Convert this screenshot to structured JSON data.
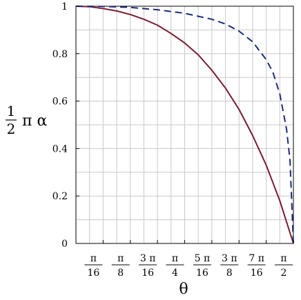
{
  "chart_data": {
    "type": "line",
    "title": "",
    "xlabel": "θ",
    "ylabel": {
      "fraction_numerator": "1",
      "fraction_denominator": "2",
      "text": "π α"
    },
    "xlim": [
      0,
      1.5708
    ],
    "ylim": [
      0,
      1
    ],
    "grid": true,
    "legend": "none",
    "y_ticks": [
      {
        "value": 0,
        "label": "0"
      },
      {
        "value": 0.2,
        "label": "0.2"
      },
      {
        "value": 0.4,
        "label": "0.4"
      },
      {
        "value": 0.6,
        "label": "0.6"
      },
      {
        "value": 0.8,
        "label": "0.8"
      },
      {
        "value": 1,
        "label": "1"
      }
    ],
    "x_ticks": [
      {
        "value": 0.19635,
        "num": "π",
        "den": "16"
      },
      {
        "value": 0.3927,
        "num": "π",
        "den": "8"
      },
      {
        "value": 0.58905,
        "num": "3 π",
        "den": "16"
      },
      {
        "value": 0.7854,
        "num": "π",
        "den": "4"
      },
      {
        "value": 0.98175,
        "num": "5 π",
        "den": "16"
      },
      {
        "value": 1.1781,
        "num": "3 π",
        "den": "8"
      },
      {
        "value": 1.37445,
        "num": "7 π",
        "den": "16"
      },
      {
        "value": 1.5708,
        "num": "π",
        "den": "2"
      }
    ],
    "series": [
      {
        "style": "solid",
        "color": "#7a1a2e",
        "x": [
          0,
          0.0982,
          0.19635,
          0.29452,
          0.3927,
          0.49087,
          0.58905,
          0.68722,
          0.7854,
          0.88357,
          0.98175,
          1.07992,
          1.1781,
          1.27627,
          1.37445,
          1.47262,
          1.5708
        ],
        "y": [
          1.0,
          0.998,
          0.99,
          0.98,
          0.965,
          0.945,
          0.92,
          0.885,
          0.845,
          0.795,
          0.73,
          0.655,
          0.565,
          0.455,
          0.33,
          0.18,
          0.0
        ]
      },
      {
        "style": "dashed",
        "color": "#1a2a7a",
        "x": [
          0,
          0.19635,
          0.3927,
          0.58905,
          0.7854,
          0.98175,
          1.07992,
          1.1781,
          1.27627,
          1.37445,
          1.42353,
          1.47262,
          1.5217,
          1.54625,
          1.5708
        ],
        "y": [
          1.0,
          0.999,
          0.995,
          0.985,
          0.97,
          0.945,
          0.925,
          0.895,
          0.85,
          0.775,
          0.72,
          0.63,
          0.48,
          0.35,
          0.0
        ]
      }
    ]
  }
}
